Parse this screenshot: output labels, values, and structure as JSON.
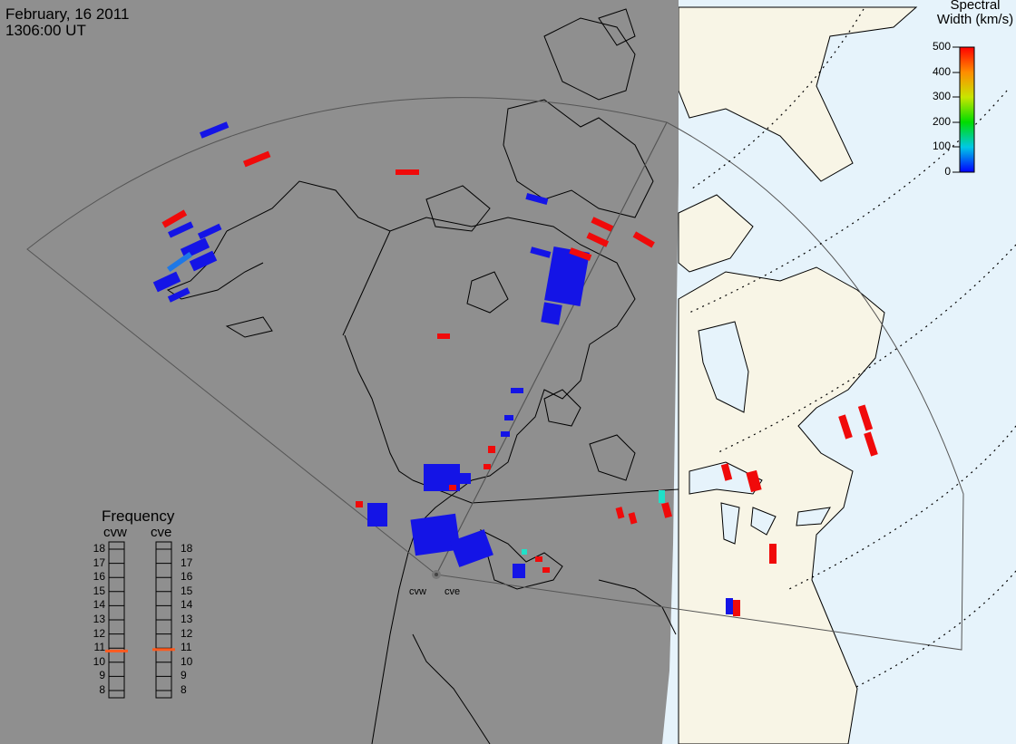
{
  "header": {
    "date": "February, 16 2011",
    "time": "1306:00 UT"
  },
  "colorbar": {
    "title_line1": "Spectral",
    "title_line2": "Width (km/s)",
    "ticks": [
      "500",
      "400",
      "300",
      "200",
      "100",
      "0"
    ]
  },
  "frequency": {
    "title": "Frequency",
    "radars": [
      "cvw",
      "cve"
    ],
    "levels": [
      "18",
      "17",
      "16",
      "15",
      "14",
      "13",
      "12",
      "11",
      "10",
      "9",
      "8"
    ],
    "cvw_mhz": 10.8,
    "cve_mhz": 10.9
  },
  "stations": [
    "cvw",
    "cve"
  ],
  "colors": {
    "night": "#8f8f8f",
    "land_day": "#f8f5e6",
    "ocean_day": "#e6f3fb",
    "low_width": "#1414e6",
    "high_width": "#f00a0a",
    "frequency_marker": "#ff5a1e"
  }
}
